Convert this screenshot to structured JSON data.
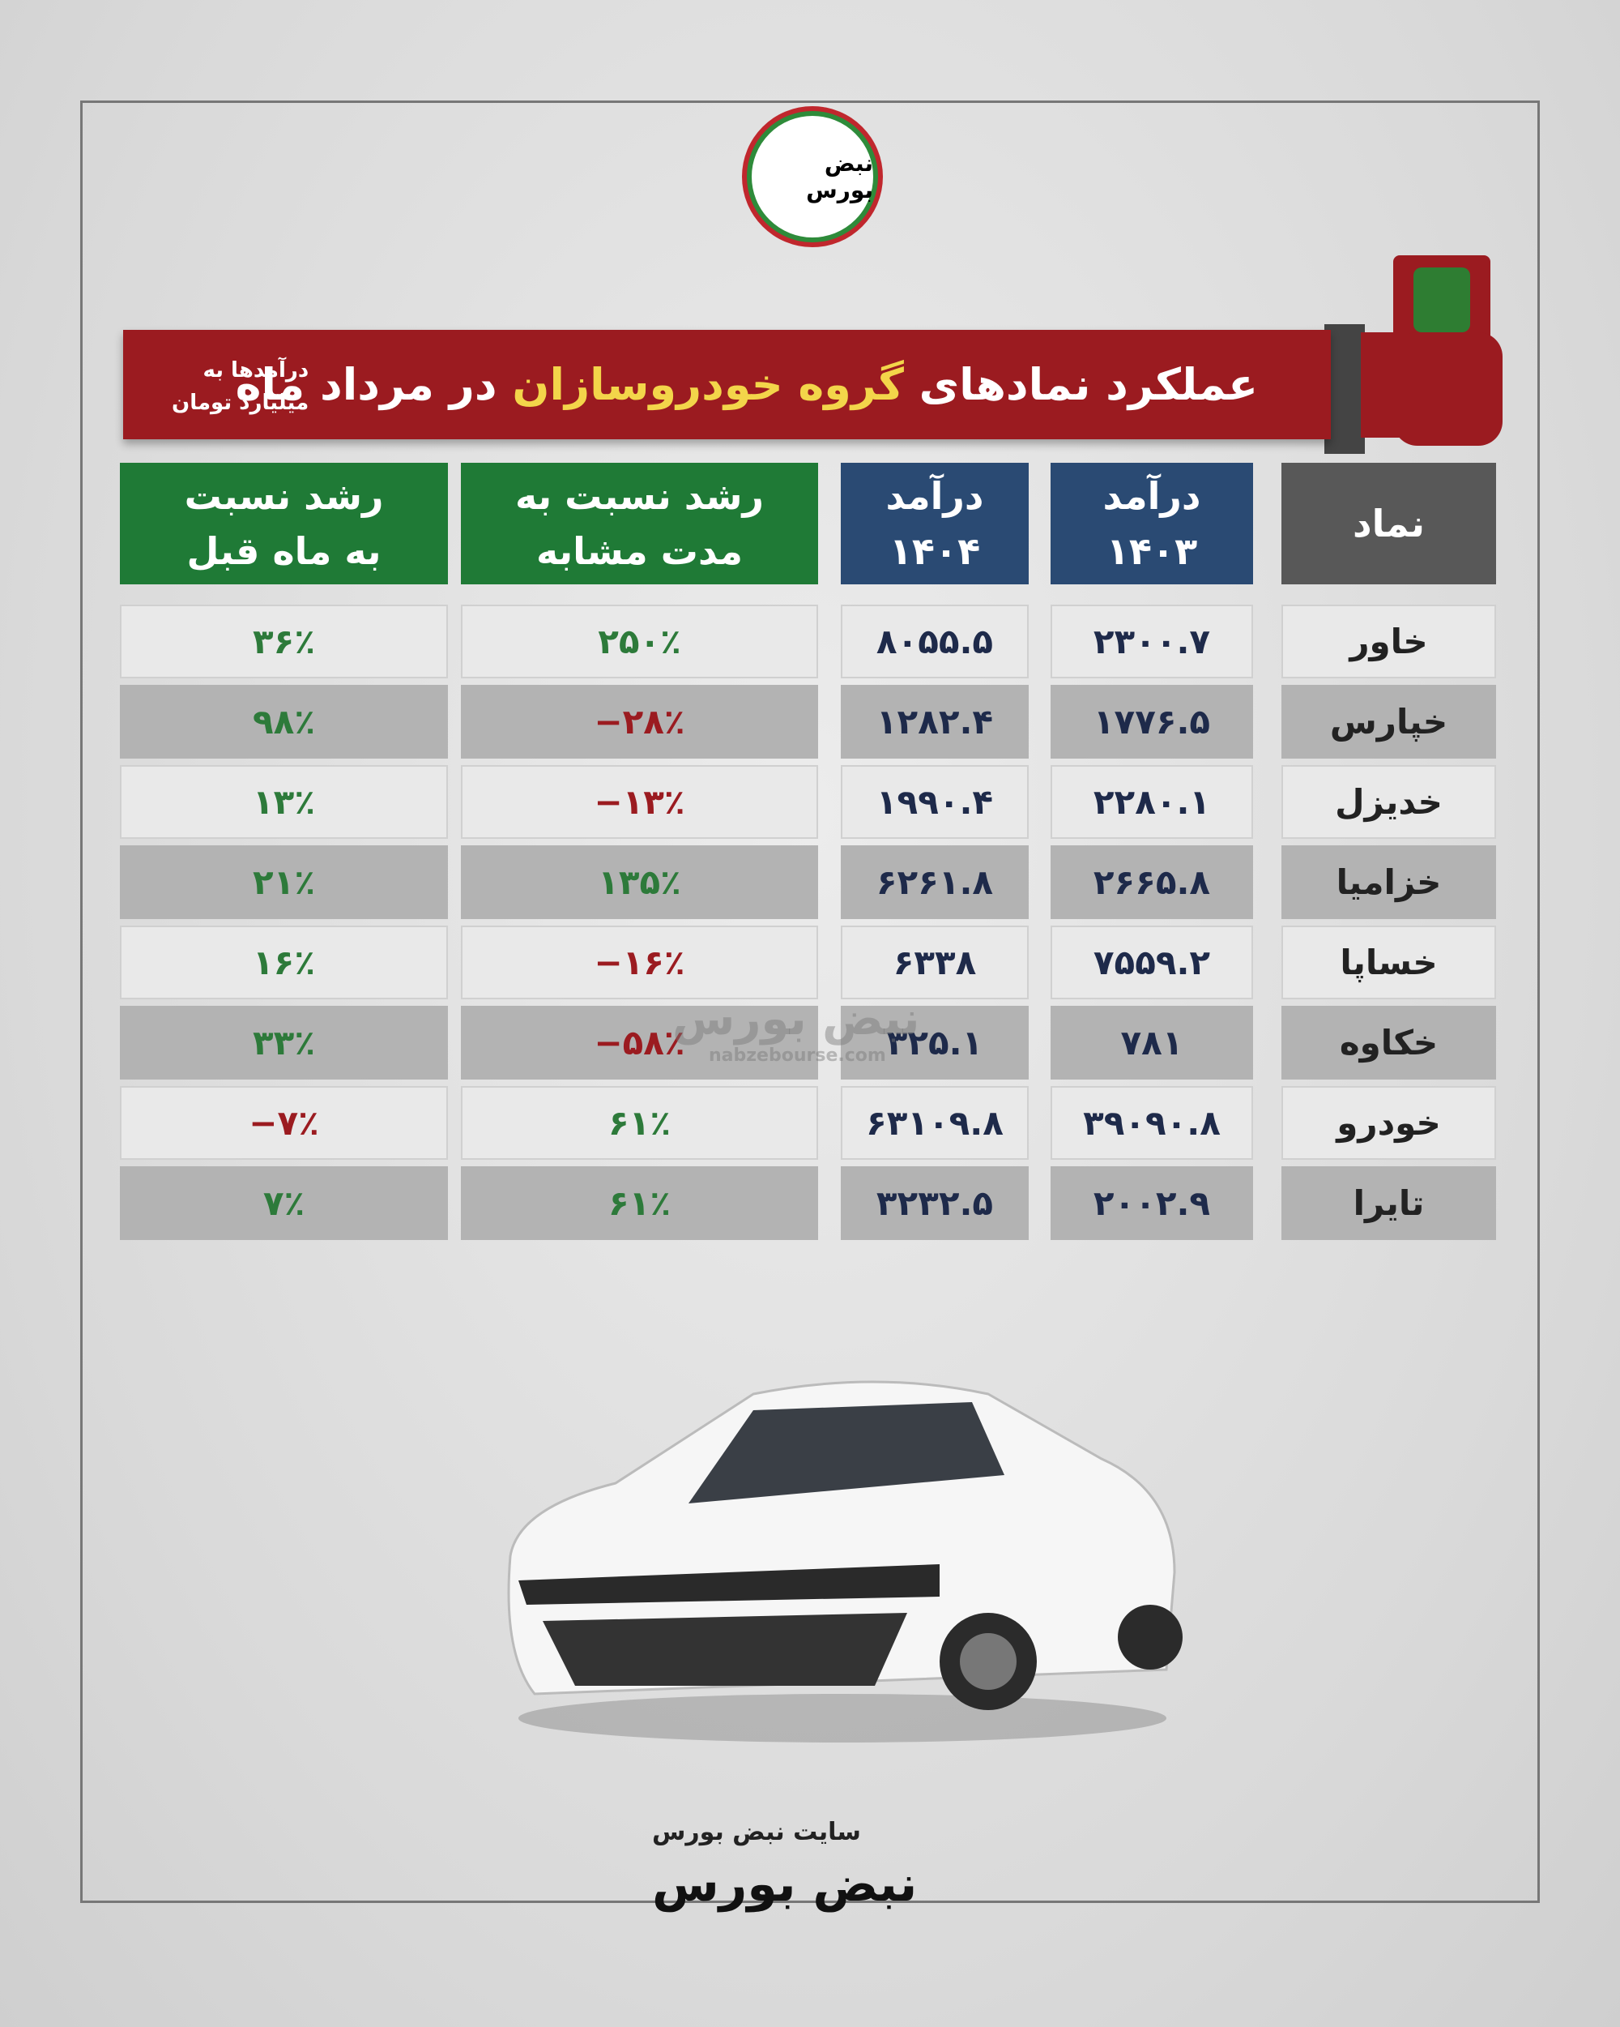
{
  "logo": {
    "text": "نبض بورس"
  },
  "header": {
    "title_pre": "عملکرد نمادهای",
    "title_highlight": "گروه خودروسازان",
    "title_post": "در مرداد ماه",
    "note": [
      "درآمدها به",
      "میلیارد تومان"
    ]
  },
  "table": {
    "columns": [
      [
        "نماد"
      ],
      [
        "درآمد",
        "۱۴۰۳"
      ],
      [
        "درآمد",
        "۱۴۰۴"
      ],
      [
        "رشد نسبت به",
        "مدت مشابه"
      ],
      [
        "رشد نسبت",
        "به ماه قبل"
      ]
    ],
    "rows": [
      [
        "خاور",
        "۲۳۰۰.۷",
        "۸۰۵۵.۵",
        "۲۵۰٪",
        "۳۶٪"
      ],
      [
        "خپارس",
        "۱۷۷۶.۵",
        "۱۲۸۲.۴",
        "−۲۸٪",
        "۹۸٪"
      ],
      [
        "خدیزل",
        "۲۲۸۰.۱",
        "۱۹۹۰.۴",
        "−۱۳٪",
        "۱۳٪"
      ],
      [
        "خزامیا",
        "۲۶۶۵.۸",
        "۶۲۶۱.۸",
        "۱۳۵٪",
        "۲۱٪"
      ],
      [
        "خساپا",
        "۷۵۵۹.۲",
        "۶۳۳۸",
        "−۱۶٪",
        "۱۶٪"
      ],
      [
        "خکاوه",
        "۷۸۱",
        "۳۲۵.۱",
        "−۵۸٪",
        "۳۳٪"
      ],
      [
        "خودرو",
        "۳۹۰۹۰.۸",
        "۶۳۱۰۹.۸",
        "۶۱٪",
        "−۷٪"
      ],
      [
        "تایرا",
        "۲۰۰۲.۹",
        "۳۲۳۲.۵",
        "۶۱٪",
        "۷٪"
      ]
    ]
  },
  "watermark": {
    "logo": "نبض بورس",
    "url": "nabzebourse.com"
  },
  "footer": {
    "site": "سایت نبض بورس",
    "logo": "نبض بورس"
  }
}
